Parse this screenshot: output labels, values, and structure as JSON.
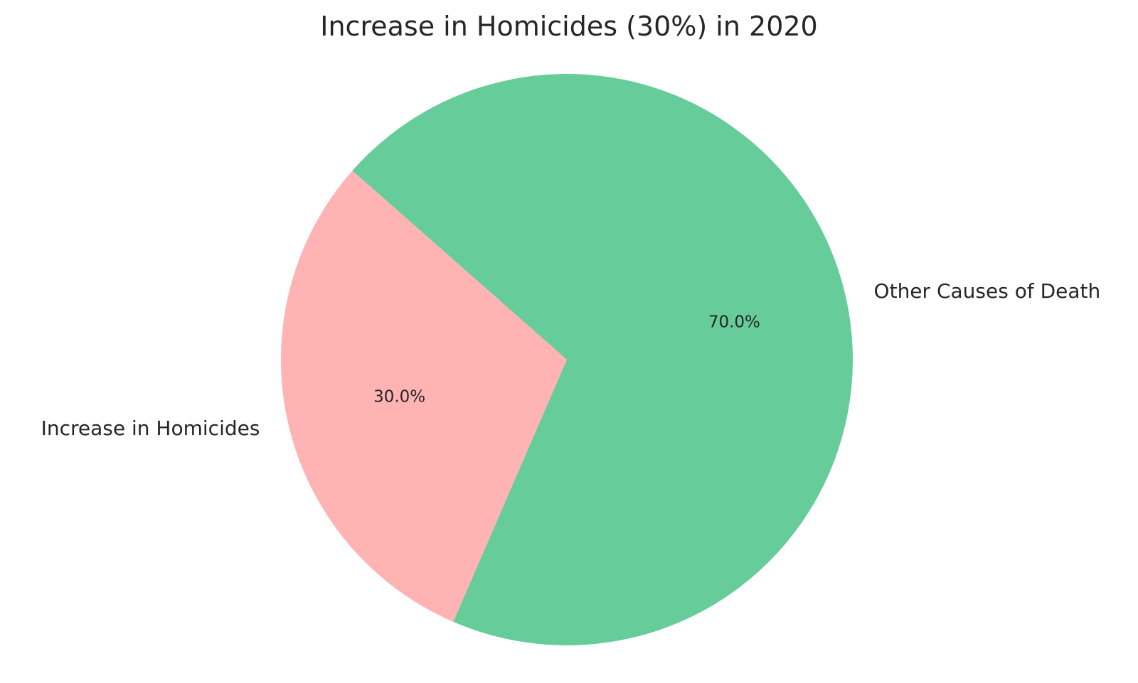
{
  "chart_data": {
    "type": "pie",
    "title": "Increase in Homicides (30%) in 2020",
    "slices": [
      {
        "label": "Increase in Homicides",
        "value": 30.0,
        "percent_label": "30.0%",
        "color": "#ffb3b3"
      },
      {
        "label": "Other Causes of Death",
        "value": 70.0,
        "percent_label": "70.0%",
        "color": "#66cc99"
      }
    ],
    "legend": "none"
  }
}
